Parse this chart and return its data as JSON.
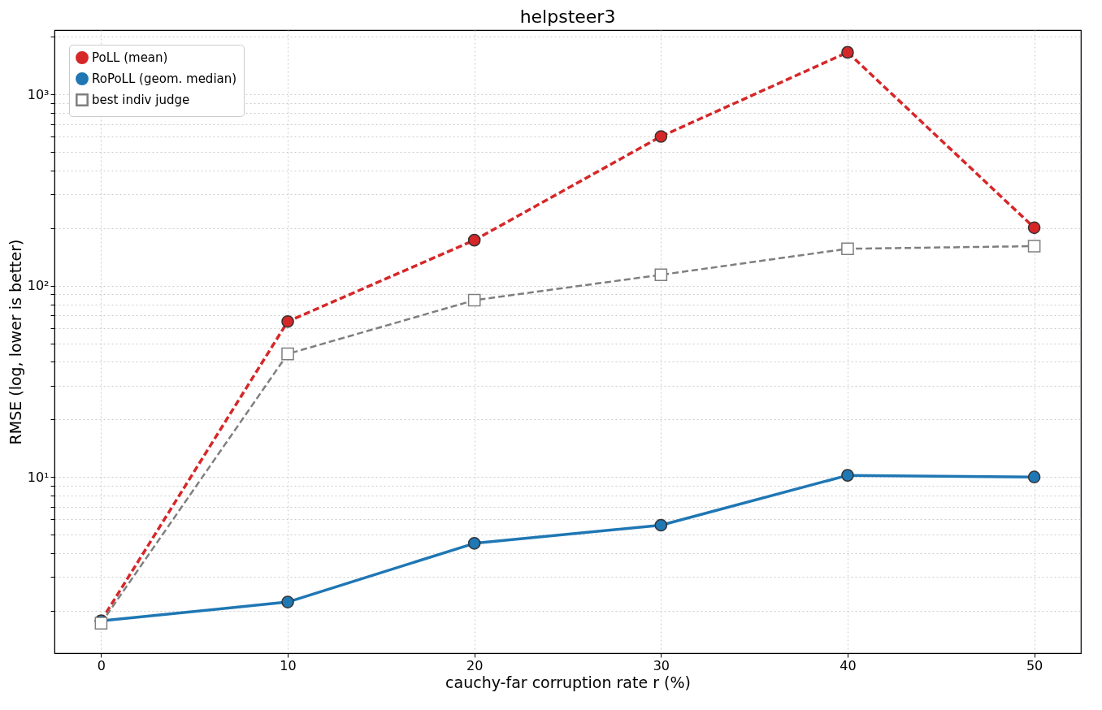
{
  "chart_data": {
    "type": "line",
    "title": "helpsteer3",
    "xlabel": "cauchy-far corruption rate r (%)",
    "ylabel": "RMSE (log, lower is better)",
    "x": [
      0,
      10,
      20,
      30,
      40,
      50
    ],
    "series": [
      {
        "name": "PoLL (mean)",
        "color": "#d62728",
        "values": [
          1.77,
          65,
          173,
          603,
          1660,
          201
        ],
        "marker": "circle",
        "line_style": "dashed"
      },
      {
        "name": "RoPoLL (geom. median)",
        "color": "#1f77b4",
        "values": [
          1.77,
          2.22,
          4.5,
          5.6,
          10.2,
          10.0
        ],
        "marker": "circle",
        "line_style": "solid"
      },
      {
        "name": "best indiv judge",
        "color": "#7f7f7f",
        "values": [
          1.72,
          44,
          84,
          114,
          156,
          161
        ],
        "marker": "square",
        "line_style": "dashed"
      }
    ],
    "log": "y",
    "xlim": [
      -2.5,
      52.5
    ],
    "xticks": [
      0,
      10,
      20,
      30,
      40,
      50
    ],
    "ylim": [
      1.2,
      2170
    ],
    "yticks": [
      {
        "value": 2,
        "label": null
      },
      {
        "value": 3,
        "label": null
      },
      {
        "value": 4,
        "label": null
      },
      {
        "value": 5,
        "label": null
      },
      {
        "value": 6,
        "label": null
      },
      {
        "value": 7,
        "label": null
      },
      {
        "value": 8,
        "label": null
      },
      {
        "value": 9,
        "label": null
      },
      {
        "value": 10,
        "label": "10¹"
      },
      {
        "value": 20,
        "label": null
      },
      {
        "value": 30,
        "label": null
      },
      {
        "value": 40,
        "label": null
      },
      {
        "value": 50,
        "label": null
      },
      {
        "value": 60,
        "label": null
      },
      {
        "value": 70,
        "label": null
      },
      {
        "value": 80,
        "label": null
      },
      {
        "value": 90,
        "label": null
      },
      {
        "value": 100,
        "label": "10²"
      },
      {
        "value": 200,
        "label": null
      },
      {
        "value": 300,
        "label": null
      },
      {
        "value": 400,
        "label": null
      },
      {
        "value": 500,
        "label": null
      },
      {
        "value": 600,
        "label": null
      },
      {
        "value": 700,
        "label": null
      },
      {
        "value": 800,
        "label": null
      },
      {
        "value": 900,
        "label": null
      },
      {
        "value": 1000,
        "label": "10³"
      },
      {
        "value": 2000,
        "label": null
      }
    ],
    "grid": true,
    "legend": "top left"
  }
}
